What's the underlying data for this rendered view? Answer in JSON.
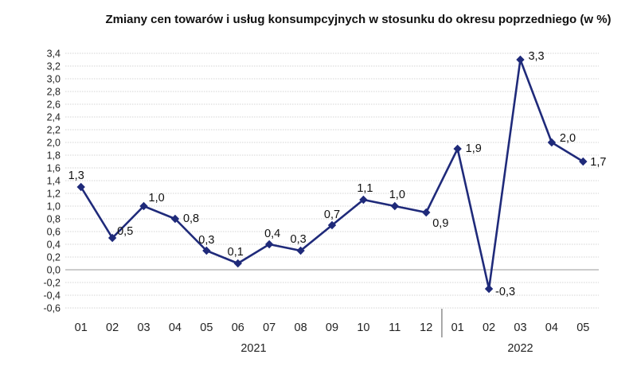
{
  "chart_data": {
    "type": "line",
    "title": "Zmiany cen towarów i usług konsumpcyjnych w stosunku do okresu poprzedniego (w %)",
    "xlabel": "",
    "ylabel": "",
    "categories": [
      "01",
      "02",
      "03",
      "04",
      "05",
      "06",
      "07",
      "08",
      "09",
      "10",
      "11",
      "12",
      "01",
      "02",
      "03",
      "04",
      "05"
    ],
    "groups": [
      {
        "label": "2021",
        "start": 0,
        "end": 11
      },
      {
        "label": "2022",
        "start": 12,
        "end": 16
      }
    ],
    "series": [
      {
        "values": [
          1.3,
          0.5,
          1.0,
          0.8,
          0.3,
          0.1,
          0.4,
          0.3,
          0.7,
          1.1,
          1.0,
          0.9,
          1.9,
          -0.3,
          3.3,
          2.0,
          1.7
        ],
        "labels": [
          "1,3",
          "0,5",
          "1,0",
          "0,8",
          "0,3",
          "0,1",
          "0,4",
          "0,3",
          "0,7",
          "1,1",
          "1,0",
          "0,9",
          "1,9",
          "-0,3",
          "3,3",
          "2,0",
          "1,7"
        ],
        "color": "#1f2a7a"
      }
    ],
    "ylim": [
      -0.6,
      3.4
    ],
    "ytick_labels": [
      "-0,6",
      "-0,4",
      "-0,2",
      "0,0",
      "0,2",
      "0,4",
      "0,6",
      "0,8",
      "1,0",
      "1,2",
      "1,4",
      "1,6",
      "1,8",
      "2,0",
      "2,2",
      "2,4",
      "2,6",
      "2,8",
      "3,0",
      "3,2",
      "3,4"
    ],
    "grid": true,
    "legend": "none"
  }
}
